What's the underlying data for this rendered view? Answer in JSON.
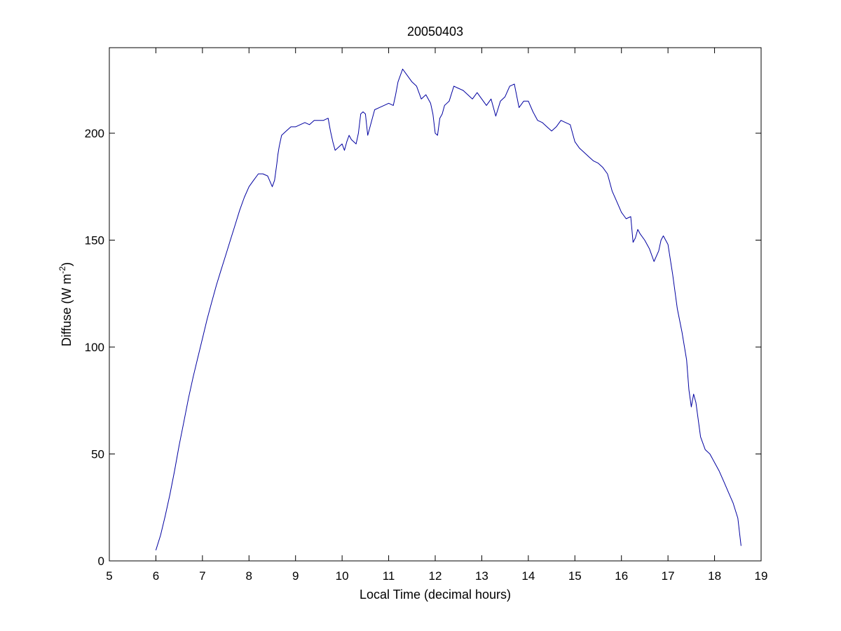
{
  "chart_data": {
    "type": "line",
    "title": "20050403",
    "xlabel": "Local Time (decimal hours)",
    "ylabel": {
      "text": "Diffuse (W m",
      "superscript": "-2",
      "suffix": ")"
    },
    "xlim": [
      5,
      19
    ],
    "ylim": [
      0,
      240
    ],
    "xticks": [
      5,
      6,
      7,
      8,
      9,
      10,
      11,
      12,
      13,
      14,
      15,
      16,
      17,
      18,
      19
    ],
    "yticks": [
      0,
      50,
      100,
      150,
      200
    ],
    "grid": false,
    "legend": "none",
    "series": [
      {
        "color": "#0000a0",
        "x": [
          6.0,
          6.1,
          6.2,
          6.3,
          6.4,
          6.5,
          6.6,
          6.7,
          6.8,
          6.9,
          7.0,
          7.1,
          7.2,
          7.3,
          7.4,
          7.5,
          7.6,
          7.7,
          7.8,
          7.9,
          8.0,
          8.1,
          8.2,
          8.3,
          8.4,
          8.5,
          8.55,
          8.6,
          8.62,
          8.65,
          8.7,
          8.8,
          8.9,
          9.0,
          9.1,
          9.2,
          9.3,
          9.4,
          9.5,
          9.6,
          9.7,
          9.75,
          9.8,
          9.85,
          9.9,
          10.0,
          10.05,
          10.1,
          10.15,
          10.2,
          10.3,
          10.35,
          10.4,
          10.45,
          10.5,
          10.55,
          10.6,
          10.65,
          10.7,
          10.8,
          10.9,
          11.0,
          11.1,
          11.15,
          11.2,
          11.3,
          11.4,
          11.5,
          11.6,
          11.7,
          11.8,
          11.9,
          11.95,
          12.0,
          12.05,
          12.1,
          12.15,
          12.2,
          12.3,
          12.4,
          12.5,
          12.6,
          12.7,
          12.8,
          12.9,
          13.0,
          13.1,
          13.2,
          13.3,
          13.4,
          13.5,
          13.6,
          13.7,
          13.8,
          13.9,
          14.0,
          14.1,
          14.2,
          14.3,
          14.4,
          14.5,
          14.6,
          14.7,
          14.8,
          14.9,
          15.0,
          15.1,
          15.2,
          15.3,
          15.4,
          15.5,
          15.6,
          15.7,
          15.8,
          15.9,
          16.0,
          16.1,
          16.2,
          16.25,
          16.3,
          16.35,
          16.4,
          16.5,
          16.6,
          16.7,
          16.8,
          16.85,
          16.9,
          17.0,
          17.1,
          17.2,
          17.3,
          17.4,
          17.45,
          17.5,
          17.55,
          17.6,
          17.7,
          17.8,
          17.9,
          18.0,
          18.1,
          18.2,
          18.3,
          18.4,
          18.5,
          18.57
        ],
        "y": [
          5,
          12,
          21,
          31,
          42,
          54,
          65,
          76,
          86,
          95,
          104,
          113,
          121,
          129,
          136,
          143,
          150,
          157,
          164,
          170,
          175,
          178,
          181,
          181,
          180,
          175,
          178,
          186,
          190,
          194,
          199,
          201,
          203,
          203,
          204,
          205,
          204,
          206,
          206,
          206,
          207,
          201,
          196,
          192,
          193,
          195,
          192,
          196,
          199,
          197,
          195,
          200,
          209,
          210,
          209,
          199,
          203,
          207,
          211,
          212,
          213,
          214,
          213,
          218,
          224,
          230,
          227,
          224,
          222,
          216,
          218,
          214,
          209,
          200,
          199,
          207,
          209,
          213,
          215,
          222,
          221,
          220,
          218,
          216,
          219,
          216,
          213,
          216,
          208,
          215,
          217,
          222,
          223,
          212,
          215,
          215,
          210,
          206,
          205,
          203,
          201,
          203,
          206,
          205,
          204,
          196,
          193,
          191,
          189,
          187,
          186,
          184,
          181,
          173,
          168,
          163,
          160,
          161,
          149,
          151,
          155,
          153,
          150,
          146,
          140,
          145,
          150,
          152,
          148,
          134,
          118,
          107,
          94,
          80,
          72,
          78,
          74,
          58,
          52,
          50,
          46,
          42,
          37,
          32,
          27,
          20,
          7
        ]
      }
    ]
  }
}
